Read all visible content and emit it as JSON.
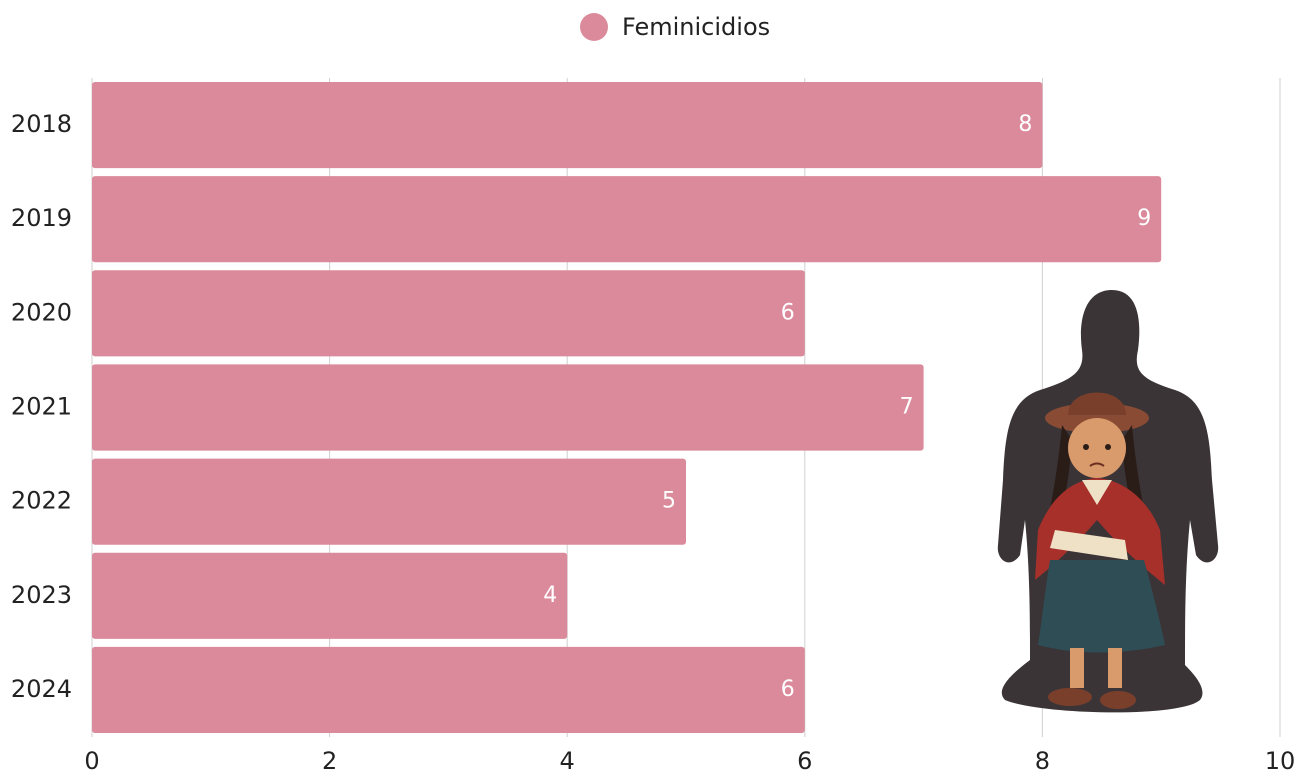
{
  "chart_data": {
    "type": "bar",
    "categories": [
      "2018",
      "2019",
      "2020",
      "2021",
      "2022",
      "2023",
      "2024"
    ],
    "series": [
      {
        "name": "Feminicidios",
        "color": "#db8a9b",
        "values": [
          8,
          9,
          6,
          7,
          5,
          4,
          6
        ]
      }
    ],
    "xlim": [
      0,
      10
    ],
    "xticks": [
      0,
      2,
      4,
      6,
      8,
      10
    ],
    "grid": true,
    "legend": "top"
  }
}
